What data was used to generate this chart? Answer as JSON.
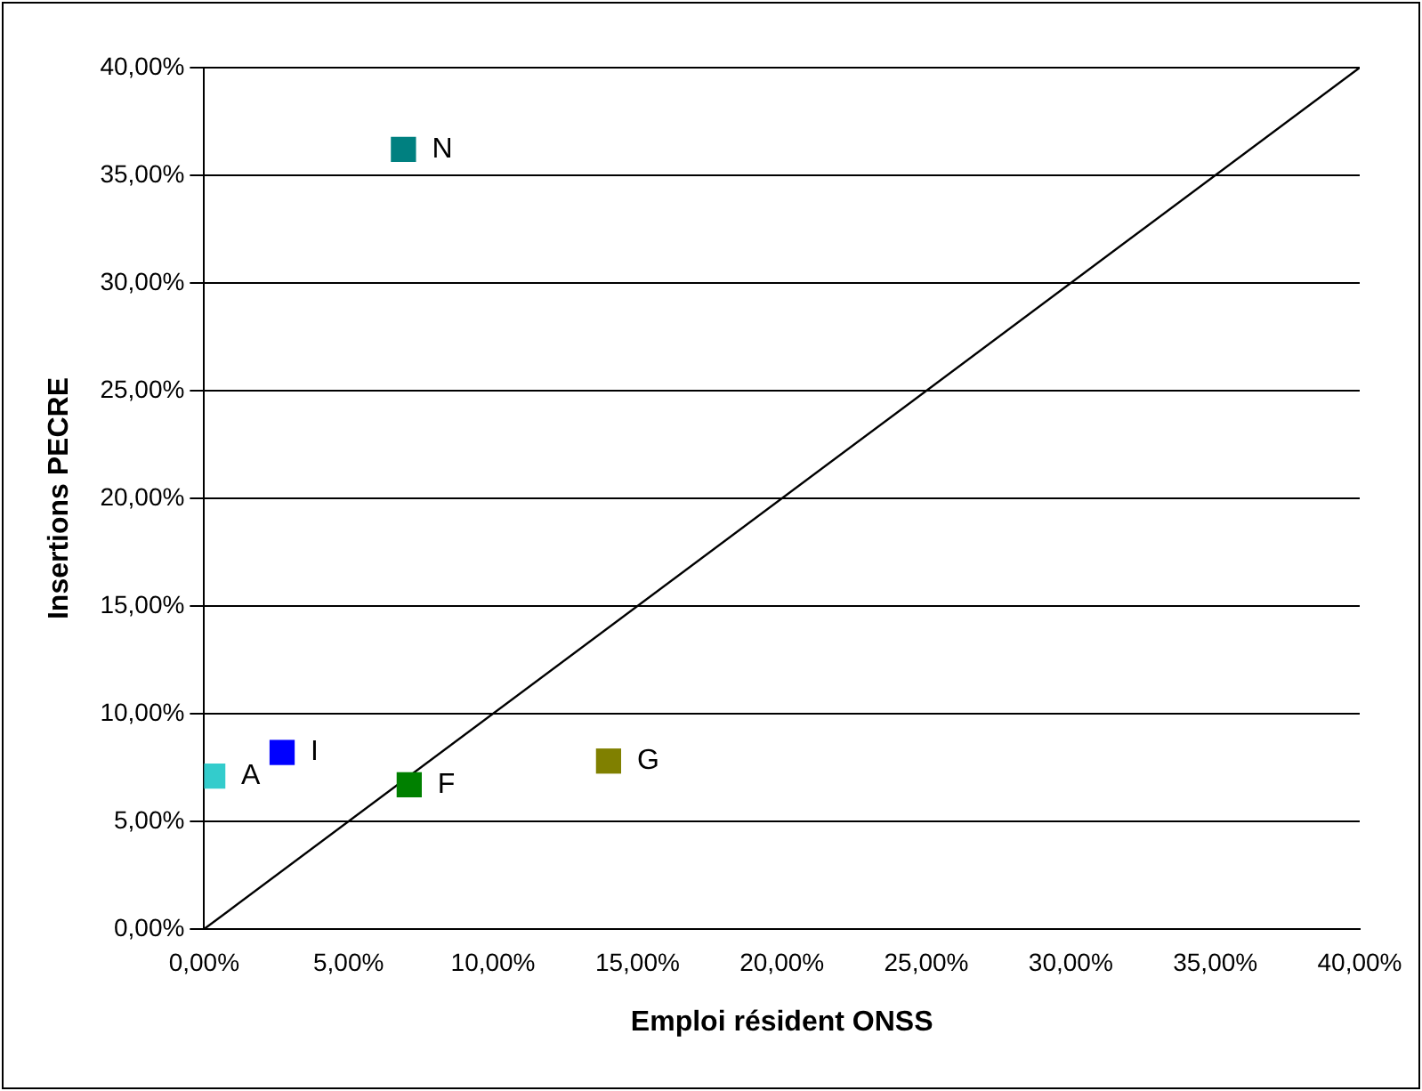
{
  "chart_data": {
    "type": "scatter",
    "xlabel": "Emploi résident ONSS",
    "ylabel": "Insertions PECRE",
    "xlim": [
      0,
      40
    ],
    "ylim": [
      0,
      40
    ],
    "xticks": [
      {
        "value": 0,
        "label": "0,00%"
      },
      {
        "value": 5,
        "label": "5,00%"
      },
      {
        "value": 10,
        "label": "10,00%"
      },
      {
        "value": 15,
        "label": "15,00%"
      },
      {
        "value": 20,
        "label": "20,00%"
      },
      {
        "value": 25,
        "label": "25,00%"
      },
      {
        "value": 30,
        "label": "30,00%"
      },
      {
        "value": 35,
        "label": "35,00%"
      },
      {
        "value": 40,
        "label": "40,00%"
      }
    ],
    "yticks": [
      {
        "value": 0,
        "label": "0,00%"
      },
      {
        "value": 5,
        "label": "5,00%"
      },
      {
        "value": 10,
        "label": "10,00%"
      },
      {
        "value": 15,
        "label": "15,00%"
      },
      {
        "value": 20,
        "label": "20,00%"
      },
      {
        "value": 25,
        "label": "25,00%"
      },
      {
        "value": 30,
        "label": "30,00%"
      },
      {
        "value": 35,
        "label": "35,00%"
      },
      {
        "value": 40,
        "label": "40,00%"
      }
    ],
    "grid": "y",
    "legend": false,
    "marker": "square",
    "series": [
      {
        "name": "N",
        "color": "#008080",
        "x": [
          6.9
        ],
        "values": [
          36.2
        ]
      },
      {
        "name": "I",
        "color": "#0000ff",
        "x": [
          2.7
        ],
        "values": [
          8.2
        ]
      },
      {
        "name": "A",
        "color": "#33cccc",
        "x": [
          0.3
        ],
        "values": [
          7.1
        ]
      },
      {
        "name": "F",
        "color": "#008000",
        "x": [
          7.1
        ],
        "values": [
          6.7
        ]
      },
      {
        "name": "G",
        "color": "#808000",
        "x": [
          14.0
        ],
        "values": [
          7.8
        ]
      },
      {
        "type": "line",
        "color": "#000000",
        "x": [
          0,
          40
        ],
        "values": [
          0,
          40
        ],
        "marker": "none"
      }
    ]
  }
}
